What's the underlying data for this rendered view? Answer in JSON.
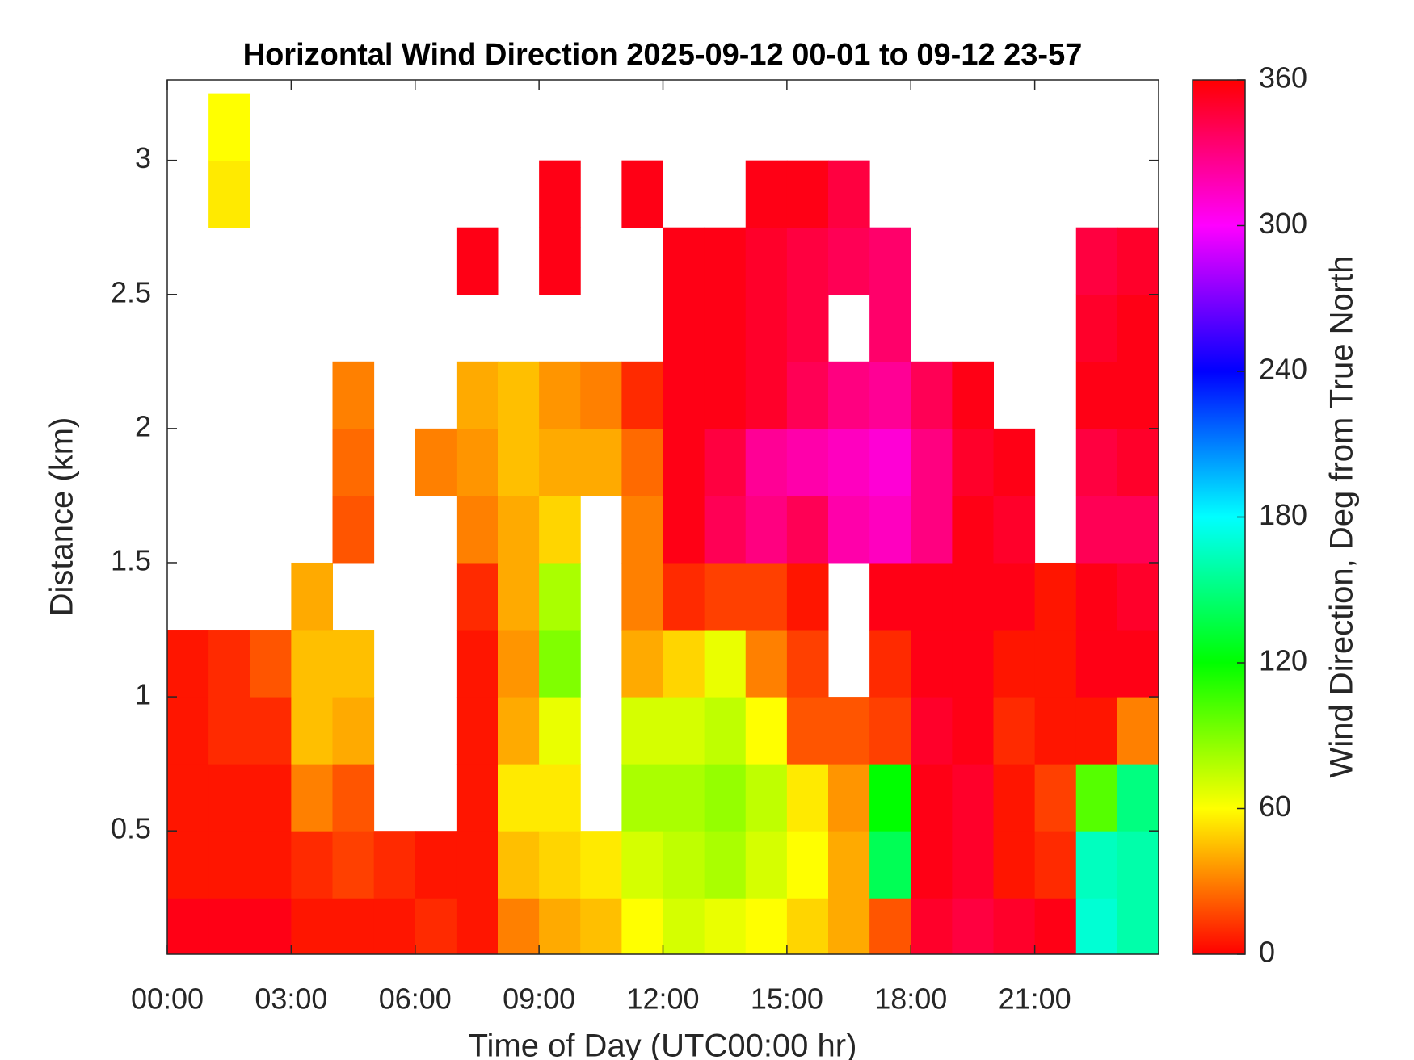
{
  "chart_data": {
    "type": "heatmap",
    "title": "Horizontal Wind Direction 2025-09-12 00-01 to 09-12 23-57",
    "x_label": "Time of Day (UTC00:00 hr)",
    "y_label": "Distance (km)",
    "colorbar_label": "Wind Direction, Deg from True North",
    "colormap": "hsv",
    "x": [
      0.5,
      1.5,
      2.5,
      3.5,
      4.5,
      5.5,
      6.5,
      7.5,
      8.5,
      9.5,
      10.5,
      11.5,
      12.5,
      13.5,
      14.5,
      15.5,
      16.5,
      17.5,
      18.5,
      19.5,
      20.5,
      21.5,
      22.5,
      23.5
    ],
    "y": [
      0.125,
      0.375,
      0.625,
      0.875,
      1.125,
      1.375,
      1.625,
      1.875,
      2.125,
      2.375,
      2.625,
      2.875,
      3.125
    ],
    "z": [
      [
        355,
        355,
        355,
        5,
        5,
        5,
        10,
        5,
        30,
        40,
        45,
        60,
        70,
        65,
        60,
        50,
        40,
        20,
        350,
        345,
        350,
        355,
        170,
        160
      ],
      [
        5,
        5,
        5,
        10,
        15,
        10,
        5,
        5,
        45,
        50,
        55,
        70,
        75,
        80,
        70,
        60,
        40,
        140,
        355,
        350,
        5,
        10,
        165,
        160
      ],
      [
        5,
        5,
        5,
        30,
        20,
        null,
        null,
        5,
        55,
        55,
        null,
        80,
        80,
        85,
        75,
        55,
        35,
        120,
        355,
        350,
        5,
        15,
        100,
        150
      ],
      [
        5,
        10,
        10,
        45,
        40,
        null,
        null,
        5,
        40,
        65,
        null,
        70,
        70,
        75,
        60,
        20,
        20,
        15,
        350,
        355,
        10,
        5,
        5,
        30
      ],
      [
        5,
        10,
        20,
        45,
        45,
        null,
        null,
        5,
        35,
        90,
        null,
        40,
        50,
        65,
        30,
        15,
        null,
        10,
        355,
        355,
        5,
        5,
        355,
        355
      ],
      [
        null,
        null,
        null,
        40,
        null,
        null,
        null,
        10,
        40,
        80,
        null,
        30,
        10,
        15,
        15,
        5,
        null,
        355,
        355,
        355,
        355,
        5,
        355,
        350
      ],
      [
        null,
        null,
        null,
        null,
        20,
        null,
        null,
        30,
        40,
        50,
        null,
        30,
        355,
        340,
        330,
        340,
        320,
        315,
        330,
        355,
        350,
        null,
        340,
        340
      ],
      [
        null,
        null,
        null,
        null,
        25,
        null,
        30,
        35,
        45,
        40,
        40,
        25,
        355,
        345,
        325,
        320,
        315,
        310,
        330,
        350,
        355,
        null,
        345,
        350
      ],
      [
        null,
        null,
        null,
        null,
        30,
        null,
        null,
        40,
        45,
        35,
        30,
        10,
        355,
        355,
        350,
        340,
        330,
        325,
        340,
        355,
        null,
        null,
        355,
        355
      ],
      [
        null,
        null,
        null,
        null,
        null,
        null,
        null,
        null,
        null,
        null,
        null,
        null,
        355,
        355,
        350,
        345,
        null,
        335,
        null,
        null,
        null,
        null,
        350,
        355
      ],
      [
        null,
        null,
        null,
        null,
        null,
        null,
        null,
        355,
        null,
        355,
        null,
        null,
        355,
        355,
        350,
        345,
        340,
        335,
        null,
        null,
        null,
        null,
        345,
        350
      ],
      [
        null,
        55,
        null,
        null,
        null,
        null,
        null,
        null,
        null,
        355,
        null,
        355,
        null,
        null,
        355,
        355,
        345,
        null,
        null,
        null,
        null,
        null,
        null,
        null
      ],
      [
        null,
        60,
        null,
        null,
        null,
        null,
        null,
        null,
        null,
        null,
        null,
        null,
        null,
        null,
        null,
        null,
        null,
        null,
        null,
        null,
        null,
        null,
        null,
        null
      ]
    ],
    "xlim": [
      0,
      24
    ],
    "xticks": [
      {
        "value": 0,
        "label": "00:00"
      },
      {
        "value": 3,
        "label": "03:00"
      },
      {
        "value": 6,
        "label": "06:00"
      },
      {
        "value": 9,
        "label": "09:00"
      },
      {
        "value": 12,
        "label": "12:00"
      },
      {
        "value": 15,
        "label": "15:00"
      },
      {
        "value": 18,
        "label": "18:00"
      },
      {
        "value": 21,
        "label": "21:00"
      }
    ],
    "ylim": [
      0.04,
      3.3
    ],
    "yticks": [
      0.5,
      1,
      1.5,
      2,
      2.5,
      3
    ],
    "clim": [
      0,
      360
    ],
    "cticks": [
      0,
      60,
      120,
      180,
      240,
      300,
      360
    ]
  }
}
